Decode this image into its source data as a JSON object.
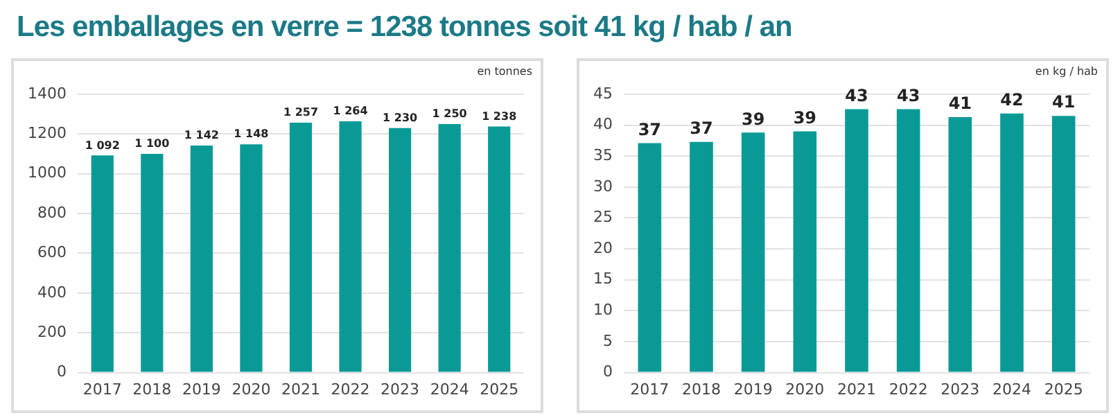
{
  "chart_data": [
    {
      "type": "bar",
      "title": "Les emballages en verre = 1238 tonnes soit 41 kg / hab / an",
      "categories": [
        "2017",
        "2018",
        "2019",
        "2020",
        "2021",
        "2022",
        "2023",
        "2024",
        "2025"
      ],
      "values": [
        1092,
        1100,
        1142,
        1148,
        1257,
        1264,
        1230,
        1250,
        1238
      ],
      "value_labels": [
        "1 092",
        "1 100",
        "1 142",
        "1 148",
        "1 257",
        "1 264",
        "1 230",
        "1 250",
        "1 238"
      ],
      "color": "#0a9a96",
      "ylim": [
        0,
        1400
      ],
      "yticks": [
        0,
        200,
        400,
        600,
        800,
        1000,
        1200,
        1400
      ],
      "grid": "y",
      "annotations": [
        "en tonnes"
      ]
    },
    {
      "type": "bar",
      "categories": [
        "2017",
        "2018",
        "2019",
        "2020",
        "2021",
        "2022",
        "2023",
        "2024",
        "2025"
      ],
      "values": [
        37.1,
        37.3,
        38.8,
        39.0,
        42.6,
        42.6,
        41.3,
        41.9,
        41.5
      ],
      "value_labels": [
        "37",
        "37",
        "39",
        "39",
        "43",
        "43",
        "41",
        "42",
        "41"
      ],
      "color": "#0a9a96",
      "ylim": [
        0,
        45
      ],
      "yticks": [
        0,
        5,
        10,
        15,
        20,
        25,
        30,
        35,
        40,
        45
      ],
      "grid": "y",
      "annotations": [
        "en kg / hab"
      ]
    }
  ]
}
